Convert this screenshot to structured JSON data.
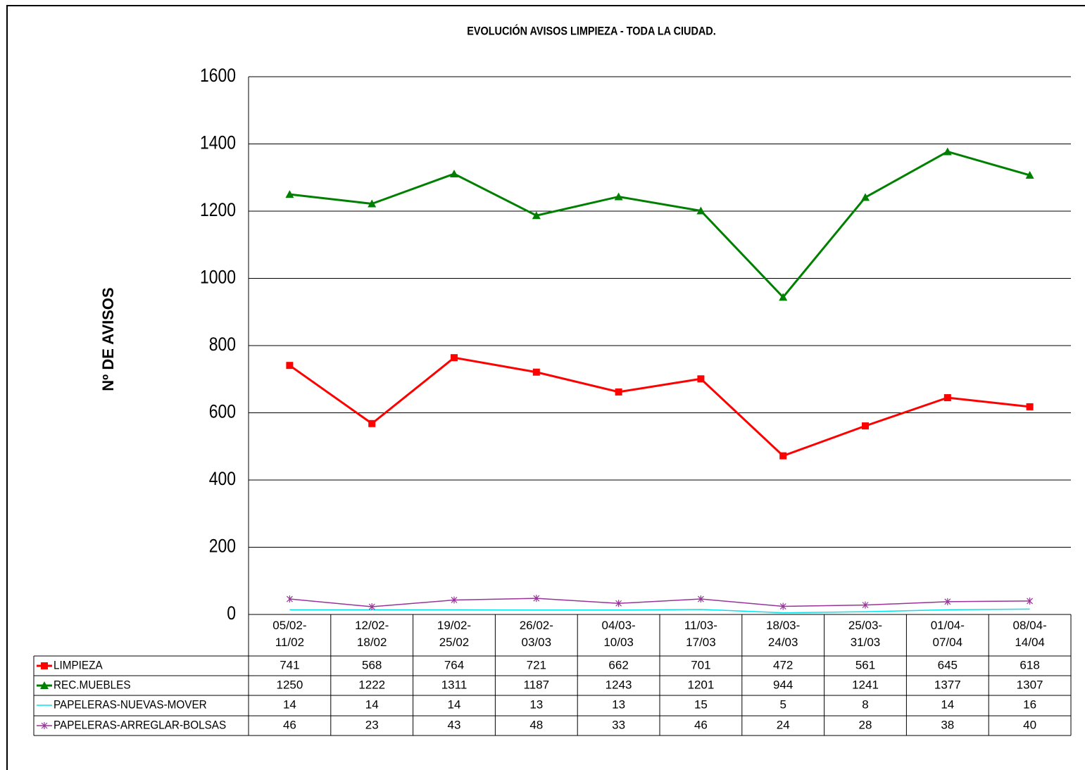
{
  "chart_data": {
    "type": "line",
    "title": "EVOLUCIÓN AVISOS LIMPIEZA - TODA LA CIUDAD.",
    "y_label": "Nº DE AVISOS",
    "categories": [
      "05/02-\n11/02",
      "12/02-\n18/02",
      "19/02-\n25/02",
      "26/02-\n03/03",
      "04/03-\n10/03",
      "11/03-\n17/03",
      "18/03-\n24/03",
      "25/03-\n31/03",
      "01/04-\n07/04",
      "08/04-\n14/04"
    ],
    "series": [
      {
        "name": "LIMPIEZA",
        "color": "#ff0000",
        "marker": "square",
        "values": [
          741,
          568,
          764,
          721,
          662,
          701,
          472,
          561,
          645,
          618
        ]
      },
      {
        "name": "REC.MUEBLES",
        "color": "#008000",
        "marker": "triangle",
        "values": [
          1250,
          1222,
          1311,
          1187,
          1243,
          1201,
          944,
          1241,
          1377,
          1307
        ]
      },
      {
        "name": "PAPELERAS-NUEVAS-MOVER",
        "color": "#00e5ee",
        "marker": "none",
        "values": [
          14,
          14,
          14,
          13,
          13,
          15,
          5,
          8,
          14,
          16
        ]
      },
      {
        "name": "PAPELERAS-ARREGLAR-BOLSAS",
        "color": "#993399",
        "marker": "star",
        "values": [
          46,
          23,
          43,
          48,
          33,
          46,
          24,
          28,
          38,
          40
        ]
      }
    ],
    "ylim": [
      0,
      1600
    ],
    "yticks": [
      0,
      200,
      400,
      600,
      800,
      1000,
      1200,
      1400,
      1600
    ],
    "grid": true
  }
}
